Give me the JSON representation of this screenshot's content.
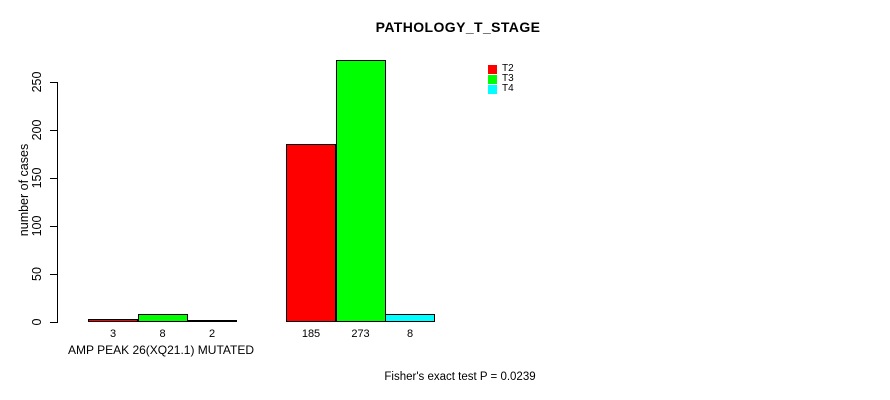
{
  "title": "PATHOLOGY_T_STAGE",
  "footer_annotation": "Fisher's exact test P = 0.0239",
  "colors": {
    "background": "#ffffff",
    "axis": "#000000",
    "t2": "#ff0000",
    "t3": "#00ff00",
    "t4": "#00ffff"
  },
  "chart_data": {
    "type": "bar",
    "title": "PATHOLOGY_T_STAGE",
    "xlabel": "",
    "ylabel": "number of cases",
    "ylim": [
      0,
      273
    ],
    "yticks": [
      0,
      50,
      100,
      150,
      200,
      250
    ],
    "grid": false,
    "legend_position": "top-right",
    "categories": [
      "AMP PEAK 26(XQ21.1) MUTATED",
      ""
    ],
    "series": [
      {
        "name": "T2",
        "color": "#ff0000",
        "values": [
          3,
          185
        ]
      },
      {
        "name": "T3",
        "color": "#00ff00",
        "values": [
          8,
          273
        ]
      },
      {
        "name": "T4",
        "color": "#00ffff",
        "values": [
          2,
          8
        ]
      }
    ],
    "bar_value_labels": [
      [
        3,
        8,
        2
      ],
      [
        185,
        273,
        8
      ]
    ],
    "annotation": "Fisher's exact test P = 0.0239"
  }
}
